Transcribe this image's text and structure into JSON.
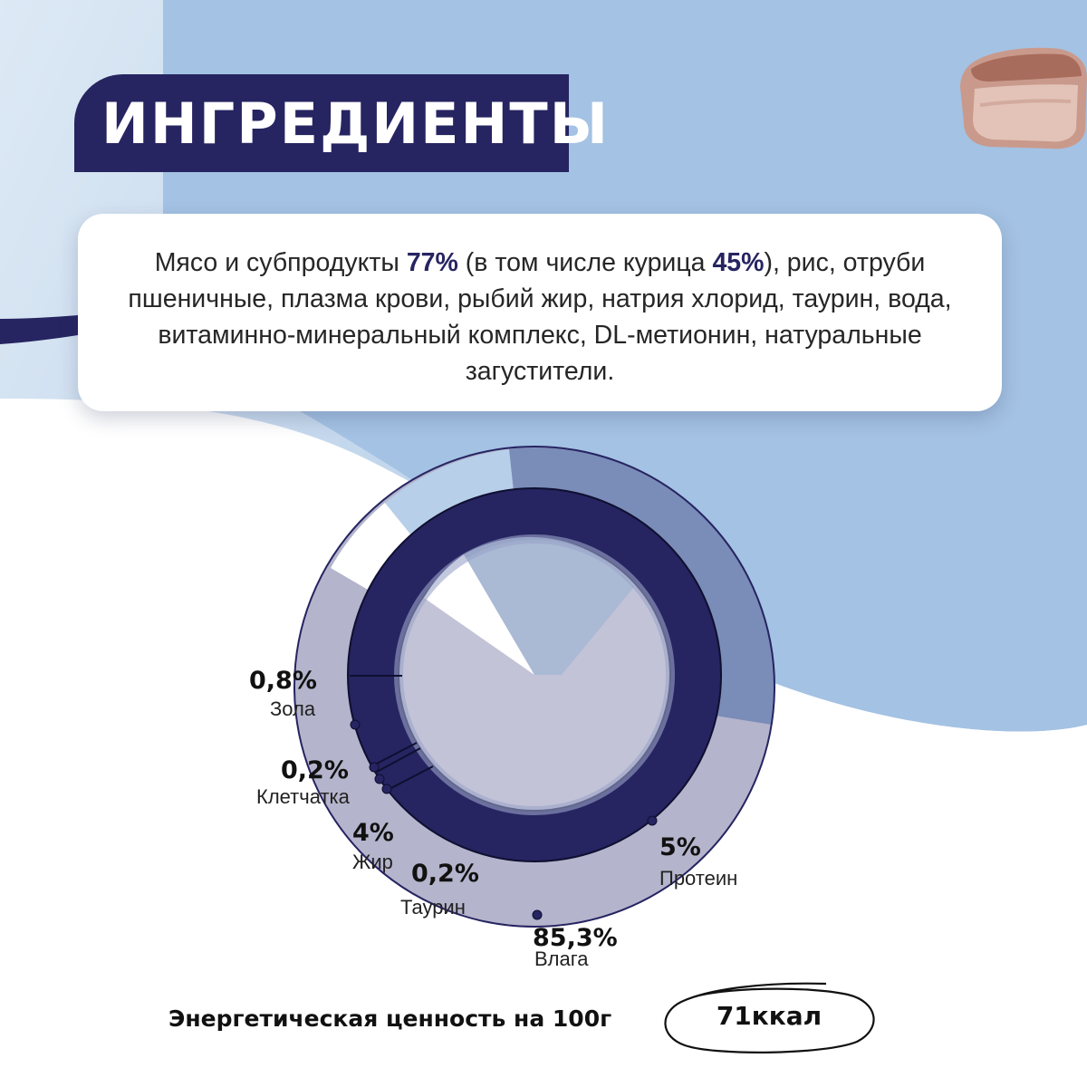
{
  "header": {
    "title": "ИНГРЕДИЕНТЫ"
  },
  "ingredients": {
    "parts": [
      {
        "text": "Мясо и субпродукты ",
        "bold": false
      },
      {
        "text": "77%",
        "bold": true
      },
      {
        "text": " (в том числе курица ",
        "bold": false
      },
      {
        "text": "45%",
        "bold": true
      },
      {
        "text": "), рис, отруби пшеничные, плазма крови, рыбий жир, натрия хлорид, таурин, вода, витаминно-минеральный комплекс, DL-метионин, натуральные загустители.",
        "bold": false
      }
    ]
  },
  "composition": {
    "items": [
      {
        "value": "85,3%",
        "label": "Влага"
      },
      {
        "value": "5%",
        "label": "Протеин"
      },
      {
        "value": "4%",
        "label": "Жир"
      },
      {
        "value": "0,2%",
        "label": "Таурин"
      },
      {
        "value": "0,2%",
        "label": "Клетчатка"
      },
      {
        "value": "0,8%",
        "label": "Зола"
      }
    ]
  },
  "energy": {
    "label": "Энергетическая ценность на 100г",
    "value": "71ккал"
  },
  "colors": {
    "navy": "#262461",
    "sky": "#a3c2e3",
    "ring_outer": "#aeaec8",
    "ring_inner": "#c3c3d8"
  },
  "decor": {
    "image": "meat-piece"
  }
}
